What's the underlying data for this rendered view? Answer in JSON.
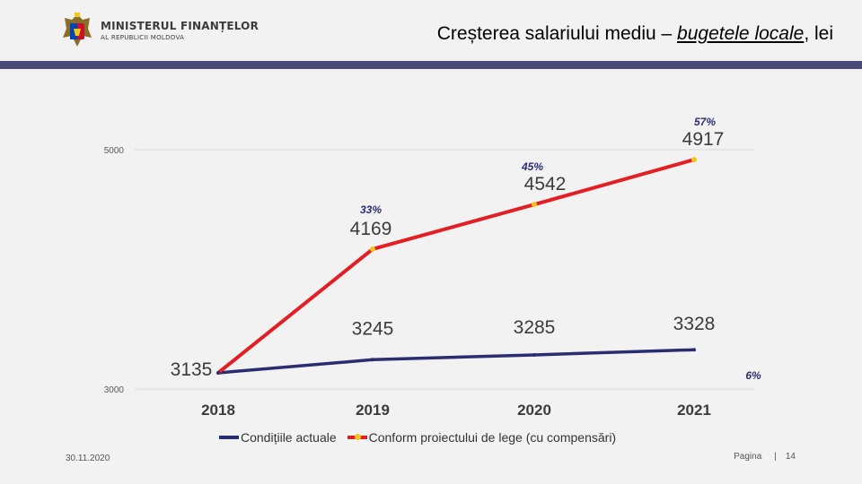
{
  "header": {
    "ministry_line1": "MINISTERUL FINANȚELOR",
    "ministry_line2": "AL REPUBLICII MOLDOVA",
    "title_prefix": "Creșterea salariului mediu – ",
    "title_underlined": "bugetele locale",
    "title_suffix": ", lei"
  },
  "chart_data": {
    "type": "line",
    "categories": [
      "2018",
      "2019",
      "2020",
      "2021"
    ],
    "y_ticks": [
      "3000",
      "5000"
    ],
    "ylim": [
      3000,
      5000
    ],
    "grid": true,
    "legend_position": "bottom",
    "series": [
      {
        "name": "Condițiile actuale",
        "color": "#2b2d72",
        "values": [
          3135,
          3245,
          3285,
          3328
        ],
        "labels": [
          "3135",
          "3245",
          "3285",
          "3328"
        ]
      },
      {
        "name": "Conform proiectului de lege (cu compensări)",
        "color": "#e31e24",
        "marker_color": "#f5c518",
        "values": [
          3135,
          4169,
          4542,
          4917
        ],
        "labels": [
          "",
          "4169",
          "4542",
          "4917"
        ]
      }
    ],
    "annotations": [
      {
        "text": "33%",
        "category": "2019",
        "series": 1
      },
      {
        "text": "45%",
        "category": "2020",
        "series": 1
      },
      {
        "text": "57%",
        "category": "2021",
        "series": 1
      },
      {
        "text": "6%",
        "category": "2021",
        "series": 0
      }
    ]
  },
  "footer": {
    "date": "30.11.2020",
    "page_label": "Pagina",
    "separator": "|",
    "page_number": "14"
  }
}
